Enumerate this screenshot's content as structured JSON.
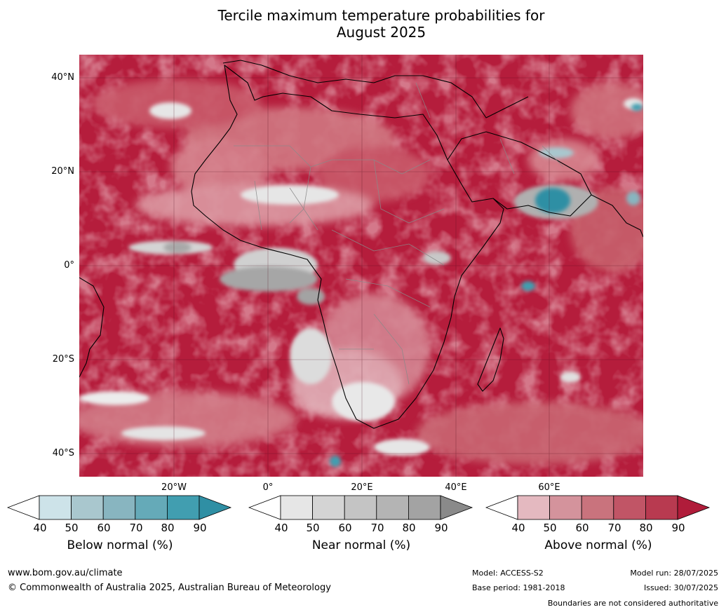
{
  "title": {
    "line1": "Tercile maximum temperature probabilities for",
    "line2": "August 2025"
  },
  "map": {
    "lat_labels": [
      "40°N",
      "20°N",
      "0°",
      "20°S",
      "40°S"
    ],
    "lon_labels": [
      "20°W",
      "0°",
      "20°E",
      "40°E",
      "60°E"
    ],
    "colors": {
      "ocean_base": "#b51d3c",
      "land_outline": "#000000",
      "border": "#8a8a8a"
    }
  },
  "colorbars": [
    {
      "label": "Below normal (%)",
      "ticks": [
        "40",
        "50",
        "60",
        "70",
        "80",
        "90"
      ],
      "colors": [
        "#ffffff",
        "#cde3e9",
        "#a9c7ce",
        "#88b5c0",
        "#65aab8",
        "#419eb0",
        "#2f8fa4"
      ]
    },
    {
      "label": "Near normal (%)",
      "ticks": [
        "40",
        "50",
        "60",
        "70",
        "80",
        "90"
      ],
      "colors": [
        "#ffffff",
        "#e6e6e6",
        "#d4d4d4",
        "#c4c4c4",
        "#b4b4b4",
        "#a3a3a3",
        "#8a8a8a"
      ]
    },
    {
      "label": "Above normal (%)",
      "ticks": [
        "40",
        "50",
        "60",
        "70",
        "80",
        "90"
      ],
      "colors": [
        "#ffffff",
        "#e4b9c0",
        "#d4939c",
        "#c9737d",
        "#c15566",
        "#b83a50",
        "#b01c3a"
      ]
    }
  ],
  "footer": {
    "website": "www.bom.gov.au/climate",
    "copyright": "© Commonwealth of Australia 2025, Australian Bureau of Meteorology",
    "model": "Model: ACCESS-S2",
    "base_period": "Base period: 1981-2018",
    "model_run": "Model run: 28/07/2025",
    "issued": "Issued: 30/07/2025",
    "disclaimer": "Boundaries are not considered authoritative"
  }
}
